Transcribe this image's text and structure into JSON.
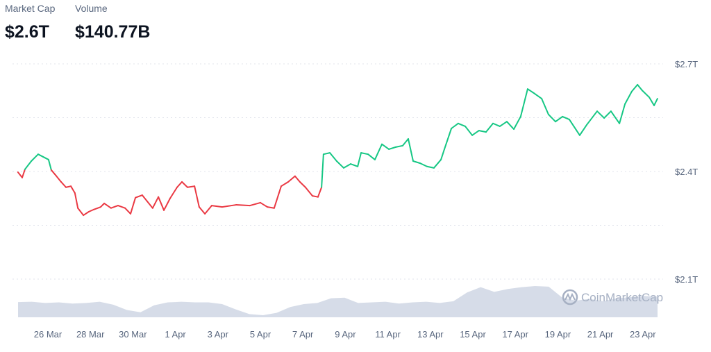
{
  "stats": {
    "market_cap_label": "Market Cap",
    "market_cap_value": "$2.6T",
    "volume_label": "Volume",
    "volume_value": "$140.77B"
  },
  "watermark": "CoinMarketCap",
  "colors": {
    "up": "#16c784",
    "down": "#ea3943",
    "volume": "#cfd6e4",
    "grid": "#e0e3eb"
  },
  "chart_data": {
    "type": "line",
    "title": "",
    "ylabel": "Market Cap",
    "ylim": [
      2.1,
      2.7
    ],
    "y_ticks": [
      {
        "v": 2.7,
        "label": "$2.7T"
      },
      {
        "v": 2.4,
        "label": "$2.4T"
      },
      {
        "v": 2.1,
        "label": "$2.1T"
      }
    ],
    "y_grid": [
      2.7,
      2.55,
      2.4,
      2.25,
      2.1
    ],
    "x_unit": "days since 26 Mar",
    "x_ticks": [
      {
        "v": 0,
        "label": "26 Mar"
      },
      {
        "v": 2,
        "label": "28 Mar"
      },
      {
        "v": 4,
        "label": "30 Mar"
      },
      {
        "v": 6,
        "label": "1 Apr"
      },
      {
        "v": 8,
        "label": "3 Apr"
      },
      {
        "v": 10,
        "label": "5 Apr"
      },
      {
        "v": 12,
        "label": "7 Apr"
      },
      {
        "v": 14,
        "label": "9 Apr"
      },
      {
        "v": 16,
        "label": "11 Apr"
      },
      {
        "v": 18,
        "label": "13 Apr"
      },
      {
        "v": 20,
        "label": "15 Apr"
      },
      {
        "v": 22,
        "label": "17 Apr"
      },
      {
        "v": 24,
        "label": "19 Apr"
      },
      {
        "v": 26,
        "label": "21 Apr"
      },
      {
        "v": 28,
        "label": "23 Apr"
      }
    ],
    "x": [
      -1.41,
      -1.21,
      -1.08,
      -0.78,
      -0.46,
      -0.23,
      0.03,
      0.16,
      0.36,
      0.62,
      0.85,
      1.08,
      1.27,
      1.41,
      1.67,
      1.93,
      2.16,
      2.48,
      2.65,
      2.97,
      3.3,
      3.63,
      3.89,
      4.12,
      4.44,
      4.67,
      4.93,
      5.2,
      5.46,
      5.75,
      6.08,
      6.31,
      6.57,
      6.9,
      7.12,
      7.39,
      7.71,
      8.2,
      8.86,
      9.51,
      10.0,
      10.33,
      10.65,
      10.98,
      11.31,
      11.63,
      11.86,
      12.12,
      12.45,
      12.71,
      12.88,
      12.97,
      13.27,
      13.59,
      13.92,
      14.25,
      14.58,
      14.74,
      15.07,
      15.39,
      15.72,
      16.05,
      16.37,
      16.7,
      16.96,
      17.19,
      17.52,
      17.84,
      18.17,
      18.5,
      18.66,
      18.99,
      19.31,
      19.64,
      19.97,
      20.29,
      20.62,
      20.95,
      21.27,
      21.6,
      21.93,
      22.25,
      22.58,
      22.91,
      23.24,
      23.56,
      23.89,
      24.22,
      24.54,
      25.03,
      25.36,
      25.85,
      26.18,
      26.5,
      26.9,
      27.16,
      27.48,
      27.75,
      27.97,
      28.3,
      28.53,
      28.69
    ],
    "series": [
      {
        "name": "Market Cap (T)",
        "values": [
          2.398,
          2.383,
          2.406,
          2.429,
          2.448,
          2.441,
          2.433,
          2.404,
          2.39,
          2.371,
          2.356,
          2.359,
          2.34,
          2.298,
          2.278,
          2.288,
          2.294,
          2.301,
          2.311,
          2.298,
          2.305,
          2.298,
          2.282,
          2.327,
          2.334,
          2.317,
          2.298,
          2.329,
          2.292,
          2.325,
          2.356,
          2.371,
          2.356,
          2.359,
          2.301,
          2.282,
          2.305,
          2.301,
          2.307,
          2.305,
          2.313,
          2.301,
          2.298,
          2.359,
          2.371,
          2.387,
          2.371,
          2.356,
          2.332,
          2.329,
          2.356,
          2.448,
          2.452,
          2.429,
          2.41,
          2.421,
          2.414,
          2.452,
          2.448,
          2.433,
          2.476,
          2.462,
          2.468,
          2.472,
          2.491,
          2.429,
          2.423,
          2.414,
          2.41,
          2.433,
          2.462,
          2.52,
          2.534,
          2.526,
          2.501,
          2.514,
          2.51,
          2.534,
          2.526,
          2.539,
          2.518,
          2.553,
          2.63,
          2.617,
          2.603,
          2.559,
          2.539,
          2.553,
          2.545,
          2.501,
          2.53,
          2.568,
          2.549,
          2.568,
          2.534,
          2.588,
          2.623,
          2.642,
          2.626,
          2.607,
          2.584,
          2.603
        ]
      }
    ],
    "volume_relative": [
      0.45,
      0.46,
      0.42,
      0.44,
      0.4,
      0.42,
      0.46,
      0.36,
      0.18,
      0.1,
      0.34,
      0.44,
      0.46,
      0.44,
      0.44,
      0.38,
      0.2,
      0.04,
      0.0,
      0.08,
      0.28,
      0.38,
      0.42,
      0.58,
      0.6,
      0.42,
      0.44,
      0.46,
      0.4,
      0.44,
      0.46,
      0.42,
      0.48,
      0.78,
      0.96,
      0.8,
      0.9,
      0.96,
      1.0,
      0.98,
      0.6,
      0.5,
      0.56,
      0.48,
      0.58,
      0.62,
      0.66,
      0.64
    ]
  }
}
